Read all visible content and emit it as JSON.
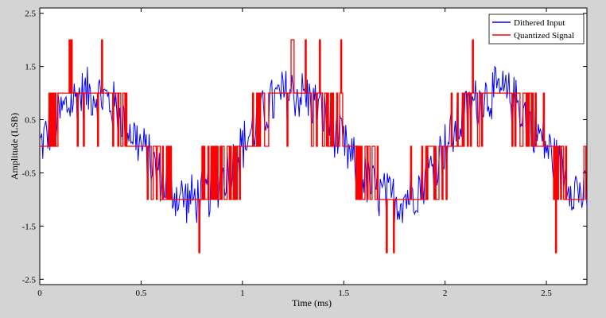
{
  "chart_data": {
    "type": "line",
    "xlabel": "Time (ms)",
    "ylabel": "Amplitude (LSB)",
    "xlim": [
      0,
      2.7
    ],
    "ylim": [
      -2.6,
      2.6
    ],
    "x_ticks": [
      0,
      0.5,
      1,
      1.5,
      2,
      2.5
    ],
    "x_tick_labels": [
      "0",
      "0.5",
      "1",
      "1.5",
      "2",
      "2.5"
    ],
    "y_ticks": [
      2.5,
      1.5,
      0.5,
      -0.5,
      -1.5,
      -2.5
    ],
    "y_tick_labels": [
      "2.5",
      "1.5",
      "0.5",
      "-0.5",
      "-1.5",
      "-2.5"
    ],
    "grid": false,
    "legend_position": "top-right",
    "signal": {
      "period_ms": 1.0,
      "amplitude_lsb": 1.0,
      "dither_amplitude_lsb": 0.5
    },
    "series": [
      {
        "name": "Dithered Input",
        "color": "#0000ff"
      },
      {
        "name": "Quantized Signal",
        "color": "#ff0000"
      }
    ]
  }
}
